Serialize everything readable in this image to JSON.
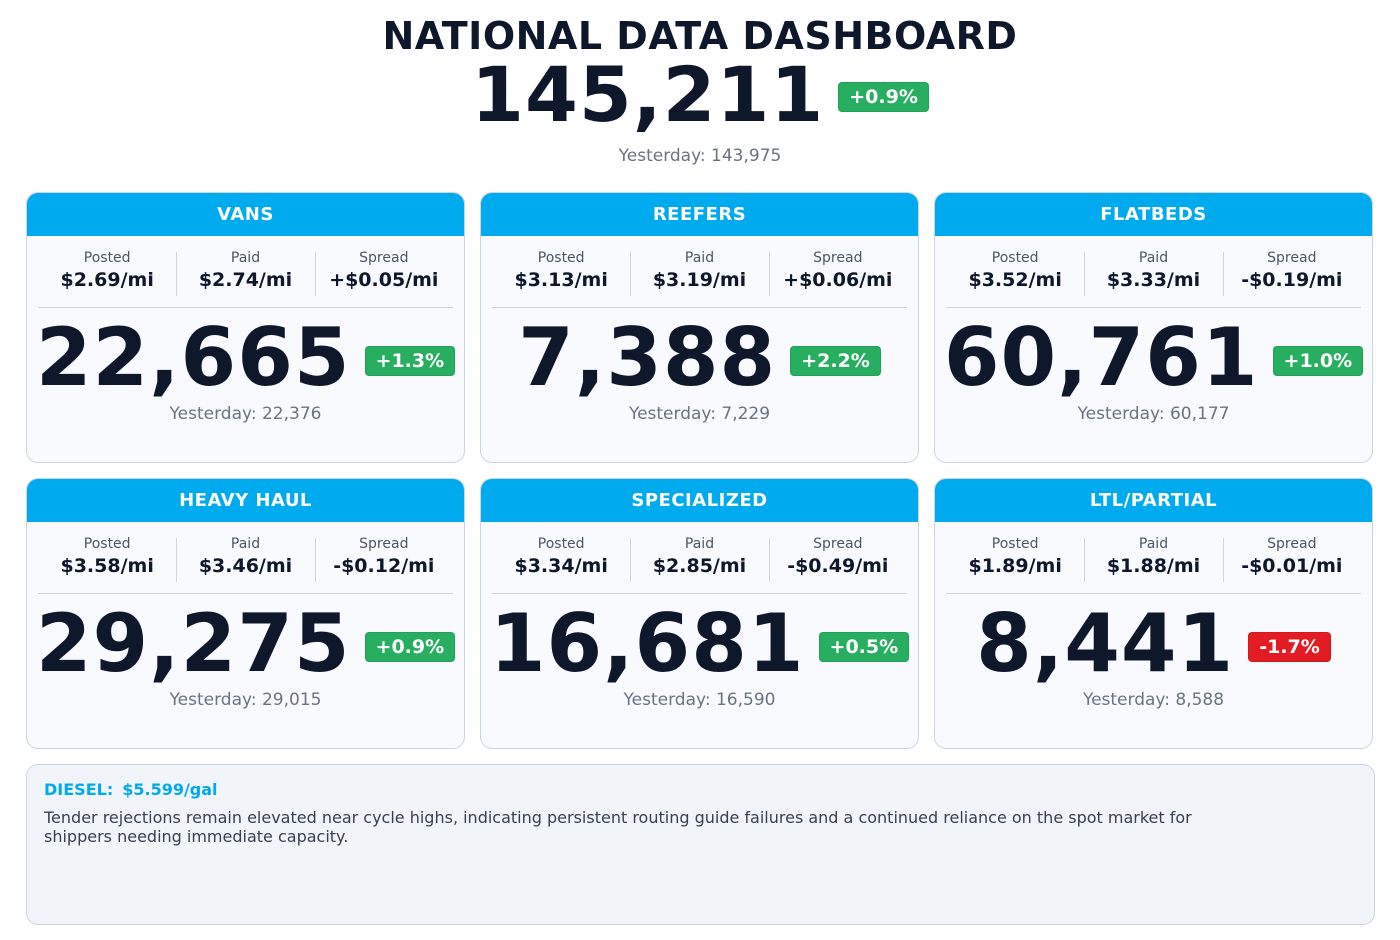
{
  "header": {
    "title": "NATIONAL DATA DASHBOARD",
    "total": "145,211",
    "change": "+0.9%",
    "change_direction": "up",
    "yesterday": "Yesterday: 143,975"
  },
  "colors": {
    "accent": "#00aaee",
    "positive": "#27ae60",
    "negative": "#e31b23",
    "text": "#0f172a",
    "muted": "#6b7280"
  },
  "rate_labels": {
    "posted": "Posted",
    "paid": "Paid",
    "spread": "Spread"
  },
  "cards": [
    {
      "name": "VANS",
      "posted": "$2.69/mi",
      "paid": "$2.74/mi",
      "spread": "+$0.05/mi",
      "count": "22,665",
      "change": "+1.3%",
      "direction": "up",
      "yesterday": "Yesterday: 22,376"
    },
    {
      "name": "REEFERS",
      "posted": "$3.13/mi",
      "paid": "$3.19/mi",
      "spread": "+$0.06/mi",
      "count": "7,388",
      "change": "+2.2%",
      "direction": "up",
      "yesterday": "Yesterday: 7,229"
    },
    {
      "name": "FLATBEDS",
      "posted": "$3.52/mi",
      "paid": "$3.33/mi",
      "spread": "-$0.19/mi",
      "count": "60,761",
      "change": "+1.0%",
      "direction": "up",
      "yesterday": "Yesterday: 60,177"
    },
    {
      "name": "HEAVY HAUL",
      "posted": "$3.58/mi",
      "paid": "$3.46/mi",
      "spread": "-$0.12/mi",
      "count": "29,275",
      "change": "+0.9%",
      "direction": "up",
      "yesterday": "Yesterday: 29,015"
    },
    {
      "name": "SPECIALIZED",
      "posted": "$3.34/mi",
      "paid": "$2.85/mi",
      "spread": "-$0.49/mi",
      "count": "16,681",
      "change": "+0.5%",
      "direction": "up",
      "yesterday": "Yesterday: 16,590"
    },
    {
      "name": "LTL/PARTIAL",
      "posted": "$1.89/mi",
      "paid": "$1.88/mi",
      "spread": "-$0.01/mi",
      "count": "8,441",
      "change": "-1.7%",
      "direction": "down",
      "yesterday": "Yesterday: 8,588"
    }
  ],
  "footer": {
    "diesel_label": "DIESEL:",
    "diesel_price": "$5.599/gal",
    "commentary": "Tender rejections remain elevated near cycle highs, indicating persistent routing guide failures and a continued reliance on the spot market for shippers needing immediate capacity."
  }
}
